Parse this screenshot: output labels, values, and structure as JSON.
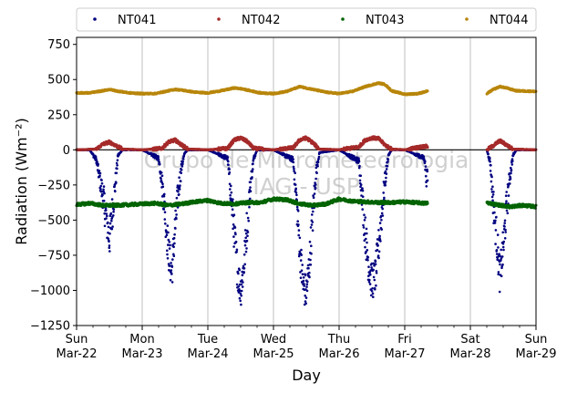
{
  "chart_data": {
    "type": "scatter",
    "xlabel": "Day",
    "ylabel": "Radiation (Wm⁻²)",
    "ylim": [
      -1250,
      800
    ],
    "yticks": [
      -1250,
      -1000,
      -750,
      -500,
      -250,
      0,
      250,
      500,
      750
    ],
    "xlim": [
      0,
      7
    ],
    "xticks": [
      {
        "x": 0,
        "day": "Sun",
        "date": "Mar-22"
      },
      {
        "x": 1,
        "day": "Mon",
        "date": "Mar-23"
      },
      {
        "x": 2,
        "day": "Tue",
        "date": "Mar-24"
      },
      {
        "x": 3,
        "day": "Wed",
        "date": "Mar-25"
      },
      {
        "x": 4,
        "day": "Thu",
        "date": "Mar-26"
      },
      {
        "x": 5,
        "day": "Fri",
        "date": "Mar-27"
      },
      {
        "x": 6,
        "day": "Sat",
        "date": "Mar-28"
      },
      {
        "x": 7,
        "day": "Sun",
        "date": "Mar-29"
      }
    ],
    "grid": "vertical",
    "zero_line": true,
    "legend_position": "top",
    "watermark": [
      "Grupo de Micrometeorologia",
      "IAG - USP"
    ],
    "data_gaps": [
      [
        5.35,
        6.25
      ]
    ],
    "series": [
      {
        "name": "NT041",
        "color": "#000080",
        "points": [
          [
            0.0,
            0
          ],
          [
            0.2,
            0
          ],
          [
            0.3,
            -70
          ],
          [
            0.35,
            -200
          ],
          [
            0.4,
            -320
          ],
          [
            0.45,
            -480
          ],
          [
            0.5,
            -640
          ],
          [
            0.55,
            -420
          ],
          [
            0.6,
            -200
          ],
          [
            0.63,
            -40
          ],
          [
            0.7,
            0
          ],
          [
            1.0,
            0
          ],
          [
            1.25,
            -60
          ],
          [
            1.3,
            -220
          ],
          [
            1.35,
            -450
          ],
          [
            1.4,
            -720
          ],
          [
            1.45,
            -880
          ],
          [
            1.5,
            -560
          ],
          [
            1.55,
            -300
          ],
          [
            1.6,
            -120
          ],
          [
            1.65,
            -20
          ],
          [
            1.7,
            0
          ],
          [
            2.0,
            0
          ],
          [
            2.3,
            -60
          ],
          [
            2.35,
            -300
          ],
          [
            2.4,
            -580
          ],
          [
            2.45,
            -850
          ],
          [
            2.5,
            -1000
          ],
          [
            2.55,
            -820
          ],
          [
            2.6,
            -520
          ],
          [
            2.65,
            -240
          ],
          [
            2.7,
            -60
          ],
          [
            2.75,
            0
          ],
          [
            3.0,
            0
          ],
          [
            3.3,
            -70
          ],
          [
            3.35,
            -350
          ],
          [
            3.4,
            -700
          ],
          [
            3.45,
            -960
          ],
          [
            3.5,
            -1020
          ],
          [
            3.55,
            -800
          ],
          [
            3.6,
            -460
          ],
          [
            3.65,
            -160
          ],
          [
            3.7,
            -20
          ],
          [
            4.0,
            0
          ],
          [
            4.3,
            -80
          ],
          [
            4.35,
            -320
          ],
          [
            4.4,
            -600
          ],
          [
            4.45,
            -820
          ],
          [
            4.5,
            -940
          ],
          [
            4.55,
            -900
          ],
          [
            4.6,
            -700
          ],
          [
            4.65,
            -450
          ],
          [
            4.7,
            -220
          ],
          [
            4.75,
            -40
          ],
          [
            4.8,
            0
          ],
          [
            5.0,
            0
          ],
          [
            5.3,
            -60
          ],
          [
            5.33,
            -200
          ],
          [
            6.25,
            0
          ],
          [
            6.3,
            -80
          ],
          [
            6.35,
            -380
          ],
          [
            6.4,
            -620
          ],
          [
            6.45,
            -900
          ],
          [
            6.5,
            -700
          ],
          [
            6.55,
            -420
          ],
          [
            6.6,
            -200
          ],
          [
            6.65,
            -40
          ],
          [
            6.7,
            0
          ],
          [
            7.0,
            0
          ]
        ]
      },
      {
        "name": "NT042",
        "color": "#a52a2a",
        "points": [
          [
            0.0,
            0
          ],
          [
            0.3,
            5
          ],
          [
            0.4,
            40
          ],
          [
            0.5,
            55
          ],
          [
            0.6,
            30
          ],
          [
            0.7,
            5
          ],
          [
            1.0,
            0
          ],
          [
            1.3,
            10
          ],
          [
            1.4,
            55
          ],
          [
            1.5,
            70
          ],
          [
            1.6,
            35
          ],
          [
            1.7,
            5
          ],
          [
            2.0,
            0
          ],
          [
            2.3,
            10
          ],
          [
            2.4,
            70
          ],
          [
            2.5,
            85
          ],
          [
            2.6,
            60
          ],
          [
            2.7,
            10
          ],
          [
            3.0,
            0
          ],
          [
            3.3,
            15
          ],
          [
            3.4,
            70
          ],
          [
            3.5,
            85
          ],
          [
            3.6,
            50
          ],
          [
            3.7,
            5
          ],
          [
            4.0,
            0
          ],
          [
            4.3,
            20
          ],
          [
            4.4,
            70
          ],
          [
            4.5,
            85
          ],
          [
            4.6,
            80
          ],
          [
            4.7,
            35
          ],
          [
            4.8,
            5
          ],
          [
            5.0,
            0
          ],
          [
            5.3,
            25
          ],
          [
            6.25,
            0
          ],
          [
            6.35,
            30
          ],
          [
            6.45,
            65
          ],
          [
            6.55,
            35
          ],
          [
            6.65,
            5
          ],
          [
            7.0,
            0
          ]
        ]
      },
      {
        "name": "NT043",
        "color": "#006400",
        "points": [
          [
            0.0,
            -390
          ],
          [
            0.2,
            -380
          ],
          [
            0.4,
            -395
          ],
          [
            0.6,
            -395
          ],
          [
            0.8,
            -390
          ],
          [
            1.0,
            -385
          ],
          [
            1.2,
            -380
          ],
          [
            1.4,
            -395
          ],
          [
            1.6,
            -385
          ],
          [
            1.8,
            -370
          ],
          [
            2.0,
            -360
          ],
          [
            2.2,
            -380
          ],
          [
            2.4,
            -385
          ],
          [
            2.6,
            -375
          ],
          [
            2.8,
            -375
          ],
          [
            3.0,
            -350
          ],
          [
            3.2,
            -355
          ],
          [
            3.4,
            -385
          ],
          [
            3.6,
            -395
          ],
          [
            3.8,
            -385
          ],
          [
            4.0,
            -350
          ],
          [
            4.2,
            -365
          ],
          [
            4.4,
            -370
          ],
          [
            4.6,
            -375
          ],
          [
            4.8,
            -375
          ],
          [
            5.0,
            -370
          ],
          [
            5.3,
            -380
          ],
          [
            6.25,
            -375
          ],
          [
            6.4,
            -390
          ],
          [
            6.6,
            -405
          ],
          [
            6.8,
            -395
          ],
          [
            7.0,
            -405
          ]
        ]
      },
      {
        "name": "NT044",
        "color": "#b8860b",
        "points": [
          [
            0.0,
            405
          ],
          [
            0.2,
            405
          ],
          [
            0.4,
            420
          ],
          [
            0.5,
            430
          ],
          [
            0.6,
            420
          ],
          [
            0.8,
            405
          ],
          [
            1.0,
            400
          ],
          [
            1.2,
            400
          ],
          [
            1.4,
            420
          ],
          [
            1.5,
            430
          ],
          [
            1.6,
            425
          ],
          [
            1.8,
            410
          ],
          [
            2.0,
            405
          ],
          [
            2.2,
            420
          ],
          [
            2.4,
            440
          ],
          [
            2.5,
            435
          ],
          [
            2.6,
            425
          ],
          [
            2.8,
            405
          ],
          [
            3.0,
            400
          ],
          [
            3.2,
            415
          ],
          [
            3.4,
            450
          ],
          [
            3.5,
            440
          ],
          [
            3.6,
            430
          ],
          [
            3.8,
            410
          ],
          [
            4.0,
            400
          ],
          [
            4.2,
            415
          ],
          [
            4.4,
            450
          ],
          [
            4.6,
            475
          ],
          [
            4.7,
            465
          ],
          [
            4.8,
            420
          ],
          [
            5.0,
            395
          ],
          [
            5.2,
            400
          ],
          [
            5.33,
            415
          ],
          [
            6.25,
            400
          ],
          [
            6.35,
            430
          ],
          [
            6.45,
            450
          ],
          [
            6.55,
            440
          ],
          [
            6.7,
            420
          ],
          [
            7.0,
            415
          ]
        ]
      }
    ]
  }
}
